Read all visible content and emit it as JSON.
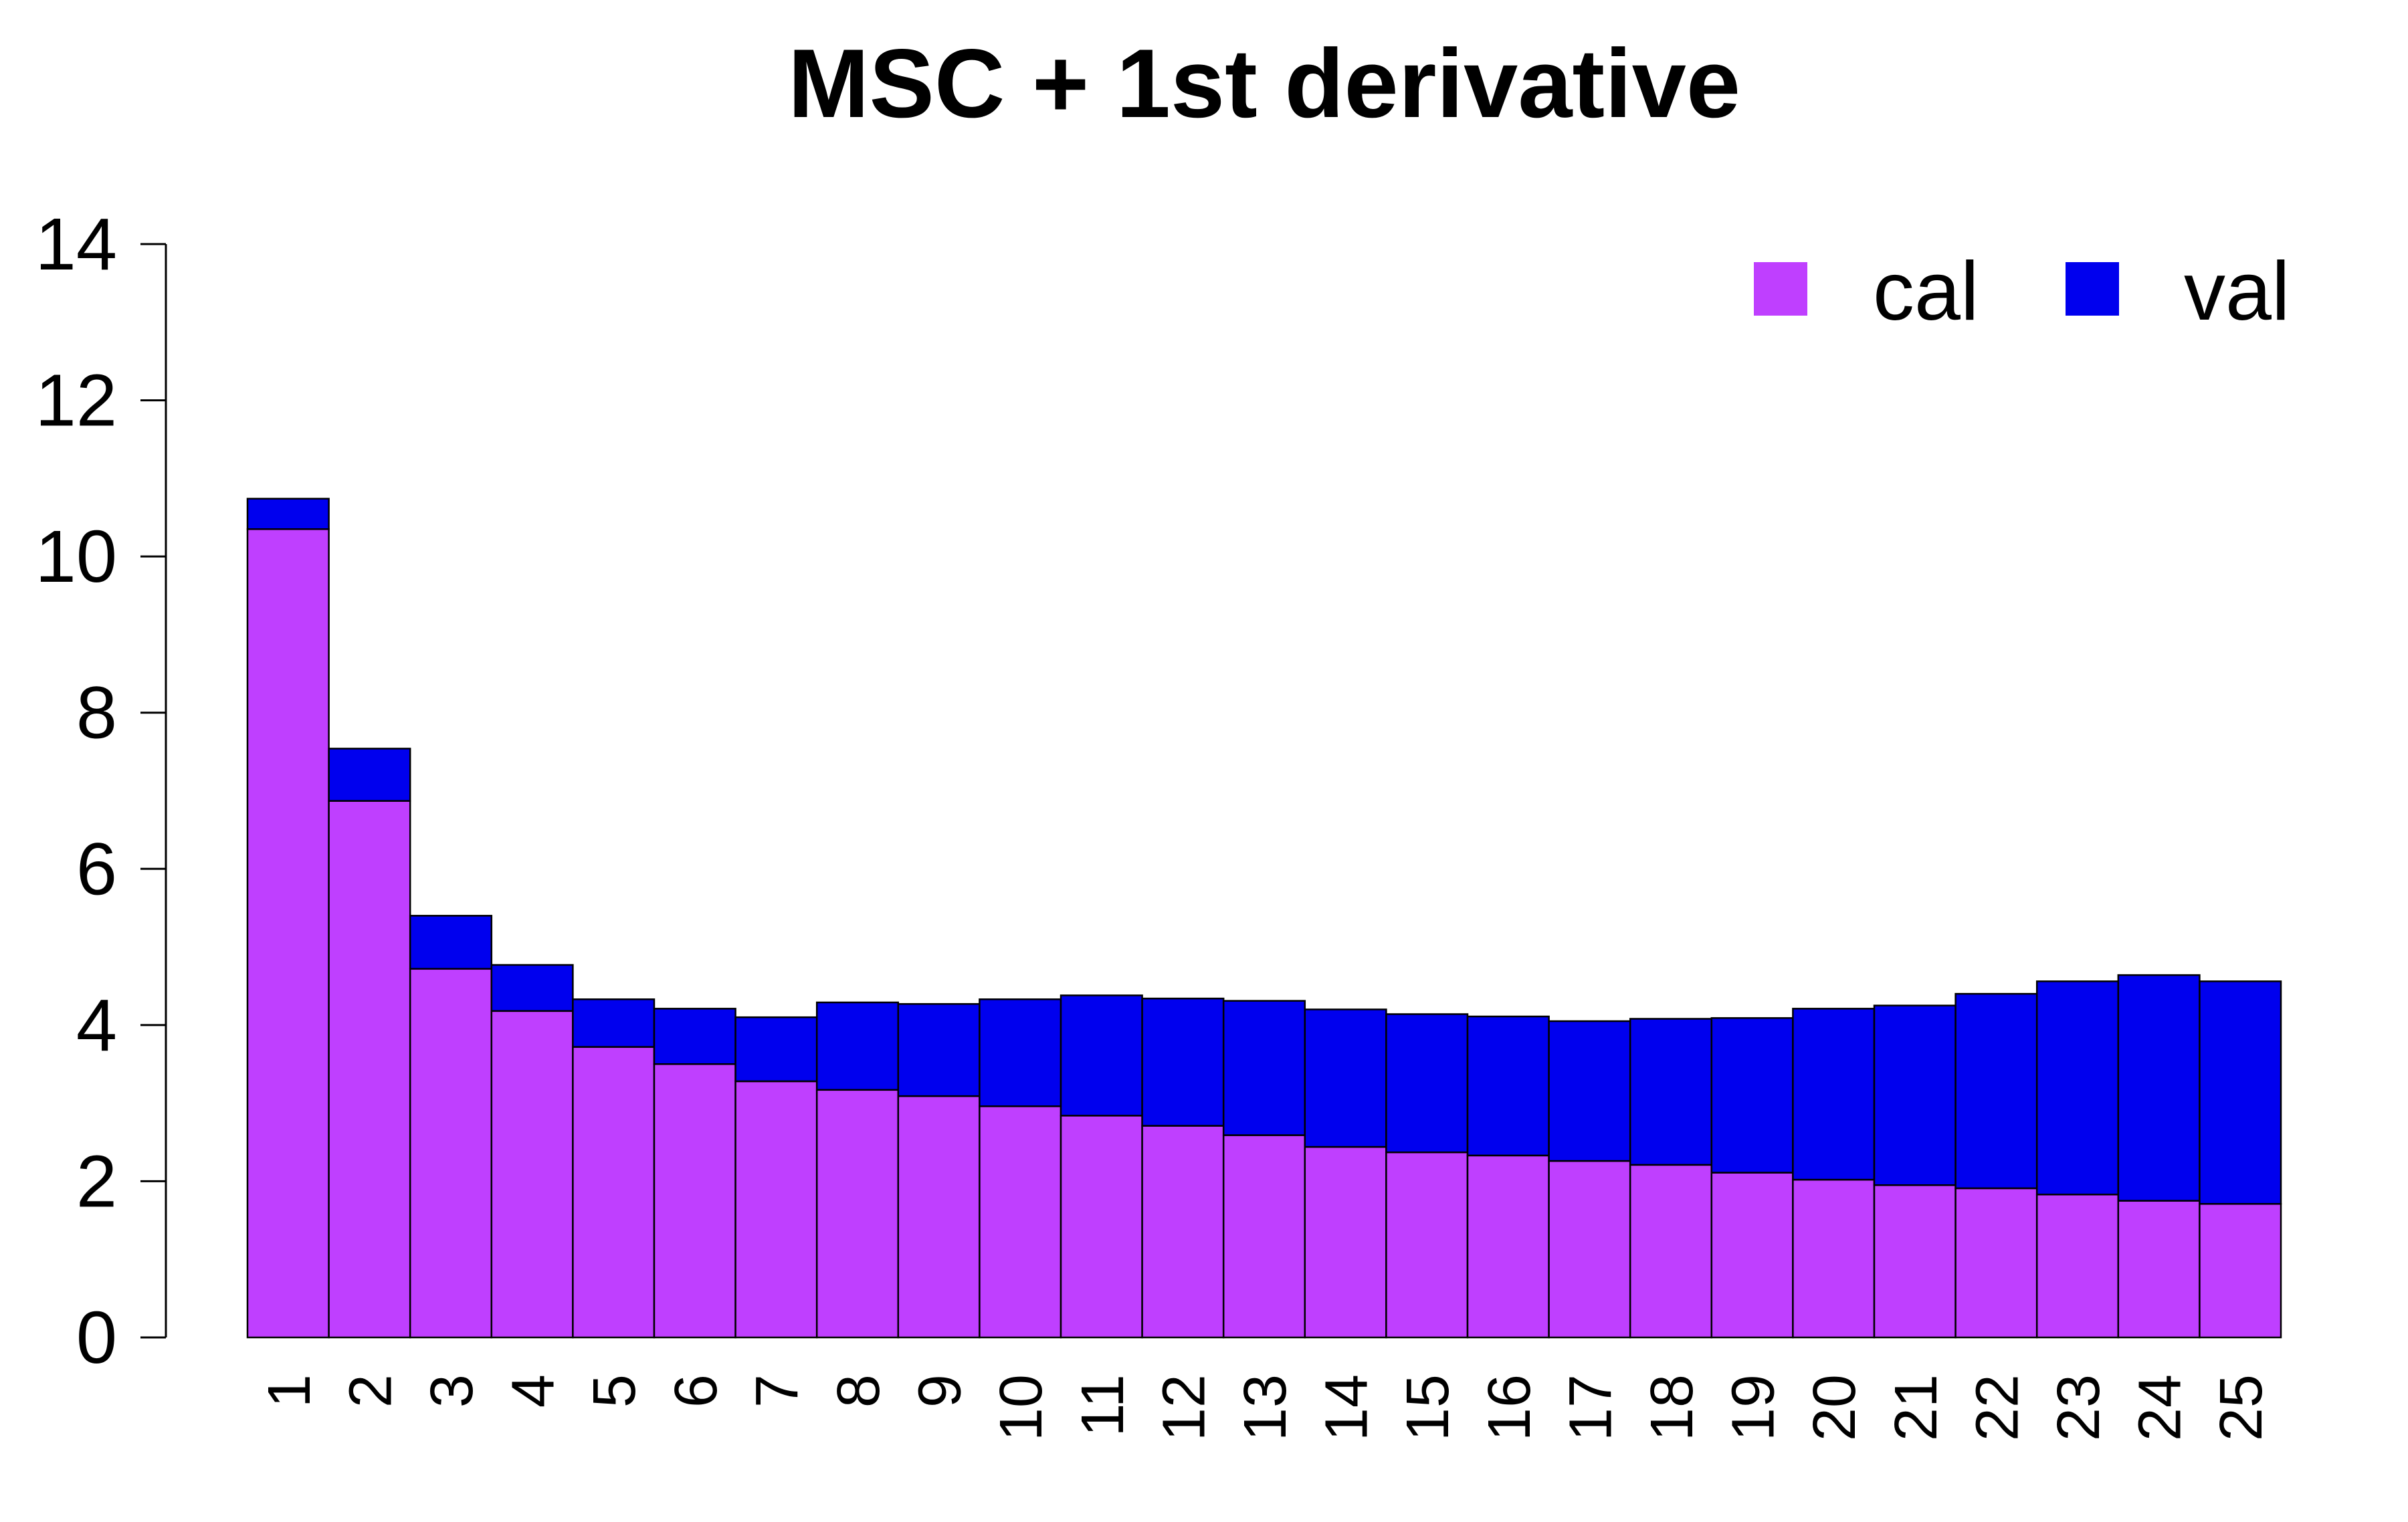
{
  "chart_data": {
    "type": "bar",
    "stacked": true,
    "title": "MSC + 1st derivative",
    "xlabel": "",
    "ylabel": "",
    "ylim": [
      0,
      14
    ],
    "yticks": [
      0,
      2,
      4,
      6,
      8,
      10,
      12,
      14
    ],
    "grid": false,
    "legend_position": "top-right",
    "categories": [
      "1",
      "2",
      "3",
      "4",
      "5",
      "6",
      "7",
      "8",
      "9",
      "10",
      "11",
      "12",
      "13",
      "14",
      "15",
      "16",
      "17",
      "18",
      "19",
      "20",
      "21",
      "22",
      "23",
      "24",
      "25"
    ],
    "series": [
      {
        "name": "cal",
        "color": "#bf3fff",
        "values": [
          10.35,
          6.87,
          4.72,
          4.18,
          3.72,
          3.5,
          3.28,
          3.17,
          3.09,
          2.96,
          2.84,
          2.71,
          2.59,
          2.44,
          2.37,
          2.33,
          2.26,
          2.21,
          2.11,
          2.02,
          1.95,
          1.91,
          1.83,
          1.75,
          1.71
        ]
      },
      {
        "name": "val",
        "color": "#0000ee",
        "values": [
          0.39,
          0.67,
          0.68,
          0.59,
          0.61,
          0.71,
          0.82,
          1.12,
          1.18,
          1.37,
          1.54,
          1.63,
          1.72,
          1.76,
          1.77,
          1.78,
          1.79,
          1.87,
          1.98,
          2.19,
          2.3,
          2.49,
          2.73,
          2.89,
          2.85
        ]
      }
    ]
  }
}
